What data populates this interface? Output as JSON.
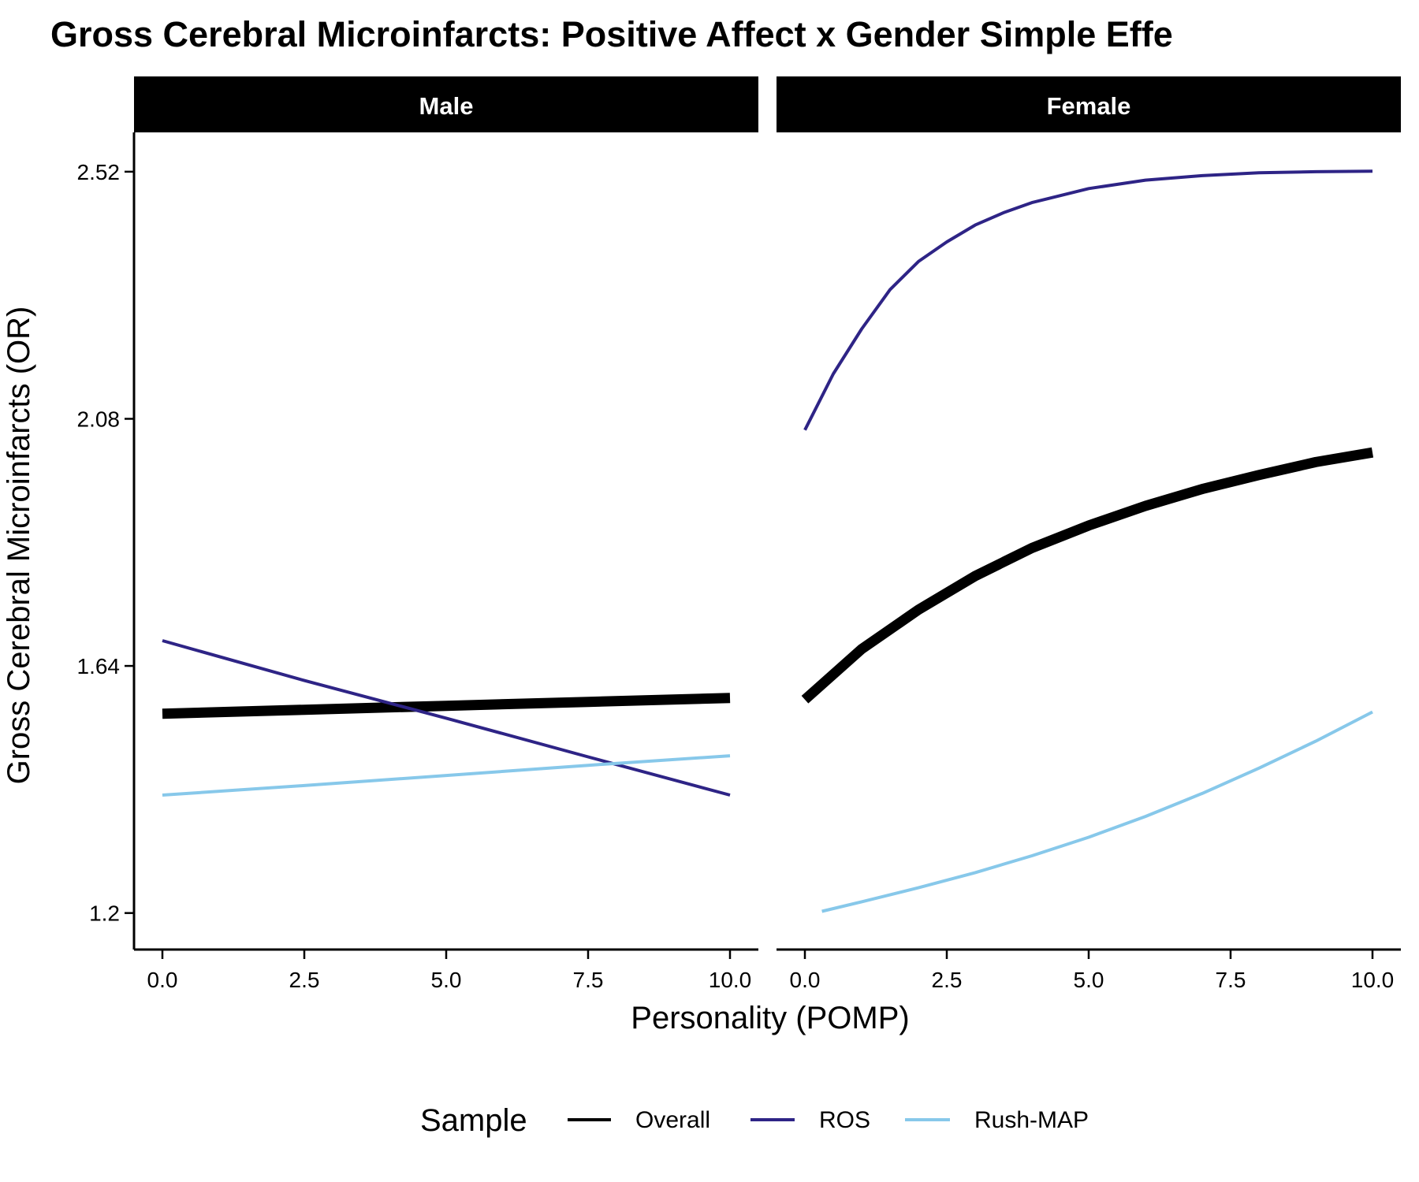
{
  "chart_data": {
    "type": "line",
    "title": "Gross Cerebral Microinfarcts: Positive Affect x Gender Simple Effe",
    "xlabel": "Personality (POMP)",
    "ylabel": "Gross Cerebral Microinfarcts (OR)",
    "facets": [
      "Male",
      "Female"
    ],
    "x_ticks": [
      "0.0",
      "2.5",
      "5.0",
      "7.5",
      "10.0"
    ],
    "xlim": [
      -0.5,
      10.5
    ],
    "y_ticks": [
      1.2,
      1.64,
      2.08,
      2.52
    ],
    "y_tick_labels": [
      "1.2",
      "1.64",
      "2.08",
      "2.52"
    ],
    "ylim": [
      1.135,
      2.59
    ],
    "grid": false,
    "legend": {
      "title": "Sample",
      "position": "bottom",
      "entries": [
        "Overall",
        "ROS",
        "Rush-MAP"
      ]
    },
    "series": [
      {
        "name": "Overall",
        "color": "#000000",
        "width": 13,
        "panels": {
          "Male": {
            "x": [
              0,
              2.5,
              5,
              7.5,
              10
            ],
            "y": [
              1.555,
              1.562,
              1.569,
              1.576,
              1.583
            ]
          },
          "Female": {
            "x": [
              0,
              1,
              2,
              3,
              4,
              5,
              6,
              7,
              8,
              9,
              10
            ],
            "y": [
              1.58,
              1.67,
              1.74,
              1.8,
              1.85,
              1.89,
              1.925,
              1.955,
              1.98,
              2.003,
              2.02
            ]
          }
        }
      },
      {
        "name": "ROS",
        "color": "#2e2486",
        "width": 4,
        "panels": {
          "Male": {
            "x": [
              0,
              2.5,
              5,
              7.5,
              10
            ],
            "y": [
              1.685,
              1.614,
              1.547,
              1.478,
              1.41
            ]
          },
          "Female": {
            "x": [
              0,
              0.5,
              1,
              1.5,
              2,
              2.5,
              3,
              3.5,
              4,
              5,
              6,
              7,
              8,
              9,
              10
            ],
            "y": [
              2.06,
              2.16,
              2.24,
              2.31,
              2.36,
              2.395,
              2.425,
              2.447,
              2.465,
              2.49,
              2.505,
              2.513,
              2.518,
              2.52,
              2.521
            ]
          }
        }
      },
      {
        "name": "Rush-MAP",
        "color": "#87c8ea",
        "width": 4,
        "panels": {
          "Male": {
            "x": [
              0,
              2.5,
              5,
              7.5,
              10
            ],
            "y": [
              1.41,
              1.427,
              1.445,
              1.463,
              1.48
            ]
          },
          "Female": {
            "x": [
              0.3,
              1,
              2,
              3,
              4,
              5,
              6,
              7,
              8,
              9,
              10
            ],
            "y": [
              1.203,
              1.22,
              1.245,
              1.272,
              1.302,
              1.335,
              1.372,
              1.413,
              1.458,
              1.506,
              1.558
            ]
          }
        }
      }
    ]
  }
}
